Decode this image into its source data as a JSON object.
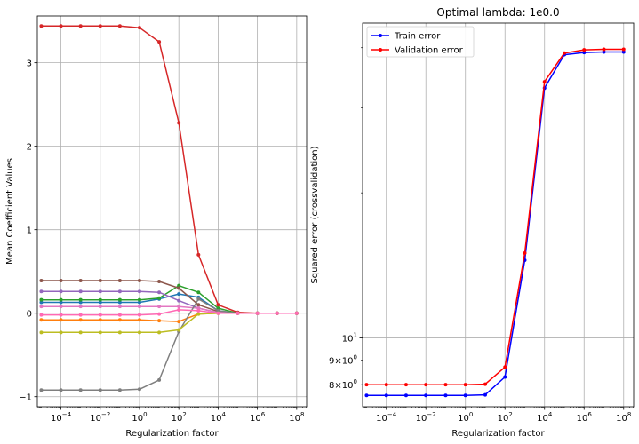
{
  "chart_data": [
    {
      "type": "line",
      "title": "",
      "xlabel": "Regularization factor",
      "ylabel": "Mean Coefficient Values",
      "xscale": "log",
      "x": [
        1e-05,
        0.0001,
        0.001,
        0.01,
        0.1,
        1,
        10,
        100,
        1000,
        10000,
        100000,
        1000000,
        10000000,
        100000000
      ],
      "xlim": [
        6.3e-06,
        320000000.0
      ],
      "ylim": [
        -1.12,
        3.56
      ],
      "xticks": [
        0.0001,
        0.01,
        1,
        100,
        10000,
        1000000,
        100000000
      ],
      "xtick_labels": [
        {
          "base": "10",
          "exp": "−4"
        },
        {
          "base": "10",
          "exp": "−2"
        },
        {
          "base": "10",
          "exp": "0"
        },
        {
          "base": "10",
          "exp": "2"
        },
        {
          "base": "10",
          "exp": "4"
        },
        {
          "base": "10",
          "exp": "6"
        },
        {
          "base": "10",
          "exp": "8"
        }
      ],
      "yticks": [
        -1,
        0,
        1,
        2,
        3
      ],
      "ytick_labels": [
        "−1",
        "0",
        "1",
        "2",
        "3"
      ],
      "grid": true,
      "marker": "dot",
      "series": [
        {
          "color": "#1f77b4",
          "values": [
            0.13,
            0.13,
            0.13,
            0.13,
            0.13,
            0.13,
            0.17,
            0.23,
            0.19,
            0.03,
            0.0,
            0.0,
            0.0,
            0.0
          ]
        },
        {
          "color": "#ff7f0e",
          "values": [
            -0.08,
            -0.08,
            -0.08,
            -0.08,
            -0.08,
            -0.08,
            -0.09,
            -0.1,
            -0.01,
            0.0,
            0.0,
            0.0,
            0.0,
            0.0
          ]
        },
        {
          "color": "#2ca02c",
          "values": [
            0.16,
            0.16,
            0.16,
            0.16,
            0.16,
            0.16,
            0.18,
            0.33,
            0.25,
            0.06,
            0.0,
            0.0,
            0.0,
            0.0
          ]
        },
        {
          "color": "#d62728",
          "values": [
            3.44,
            3.44,
            3.44,
            3.44,
            3.44,
            3.42,
            3.25,
            2.28,
            0.7,
            0.1,
            0.01,
            0.0,
            0.0,
            0.0
          ]
        },
        {
          "color": "#9467bd",
          "values": [
            0.26,
            0.26,
            0.26,
            0.26,
            0.26,
            0.26,
            0.25,
            0.15,
            0.06,
            0.01,
            0.0,
            0.0,
            0.0,
            0.0
          ]
        },
        {
          "color": "#8c564b",
          "values": [
            0.39,
            0.39,
            0.39,
            0.39,
            0.39,
            0.39,
            0.38,
            0.3,
            0.1,
            0.02,
            0.0,
            0.0,
            0.0,
            0.0
          ]
        },
        {
          "color": "#e377c2",
          "values": [
            0.08,
            0.08,
            0.08,
            0.08,
            0.08,
            0.08,
            0.08,
            0.08,
            0.06,
            0.01,
            0.0,
            0.0,
            0.0,
            0.0
          ]
        },
        {
          "color": "#7f7f7f",
          "values": [
            -0.92,
            -0.92,
            -0.92,
            -0.92,
            -0.92,
            -0.91,
            -0.8,
            -0.22,
            0.17,
            0.03,
            0.0,
            0.0,
            0.0,
            0.0
          ]
        },
        {
          "color": "#bcbd22",
          "values": [
            -0.23,
            -0.23,
            -0.23,
            -0.23,
            -0.23,
            -0.23,
            -0.23,
            -0.2,
            -0.01,
            0.0,
            0.0,
            0.0,
            0.0,
            0.0
          ]
        },
        {
          "color": "#ff69b4",
          "values": [
            -0.02,
            -0.02,
            -0.02,
            -0.02,
            -0.02,
            -0.02,
            -0.01,
            0.04,
            0.03,
            0.0,
            0.0,
            0.0,
            0.0,
            0.0
          ]
        }
      ]
    },
    {
      "type": "line",
      "title": "Optimal lambda: 1e0.0",
      "xlabel": "Regularization factor",
      "ylabel": "Squared error (crossvalidation)",
      "xscale": "log",
      "yscale": "log",
      "x": [
        1e-05,
        0.0001,
        0.001,
        0.01,
        0.1,
        1,
        10,
        100,
        1000,
        10000,
        100000,
        1000000,
        10000000,
        100000000
      ],
      "xlim": [
        6.3e-06,
        320000000.0
      ],
      "ylim": [
        7.2,
        45
      ],
      "xticks": [
        0.0001,
        0.01,
        1,
        100,
        10000,
        1000000,
        100000000
      ],
      "xtick_labels": [
        {
          "base": "10",
          "exp": "−4"
        },
        {
          "base": "10",
          "exp": "−2"
        },
        {
          "base": "10",
          "exp": "0"
        },
        {
          "base": "10",
          "exp": "2"
        },
        {
          "base": "10",
          "exp": "4"
        },
        {
          "base": "10",
          "exp": "6"
        },
        {
          "base": "10",
          "exp": "8"
        }
      ],
      "yticks_major": [
        10
      ],
      "ytick_major_labels": [
        {
          "base": "10",
          "exp": "1"
        }
      ],
      "yticks_minor": [
        8,
        9
      ],
      "ytick_minor_labels": [
        {
          "coef": "8",
          "base": "10",
          "exp": "0"
        },
        {
          "coef": "9",
          "base": "10",
          "exp": "0"
        }
      ],
      "grid": true,
      "legend_position": "top-left",
      "marker": "dot",
      "series": [
        {
          "name": "Train error",
          "color": "#0000ff",
          "values": [
            7.6,
            7.6,
            7.6,
            7.6,
            7.6,
            7.6,
            7.62,
            8.3,
            14.5,
            33.0,
            38.7,
            39.1,
            39.2,
            39.2
          ]
        },
        {
          "name": "Validation error",
          "color": "#ff0000",
          "values": [
            8.0,
            8.0,
            8.0,
            8.0,
            8.0,
            8.0,
            8.02,
            8.7,
            15.0,
            34.0,
            39.0,
            39.6,
            39.7,
            39.7
          ]
        }
      ]
    }
  ]
}
